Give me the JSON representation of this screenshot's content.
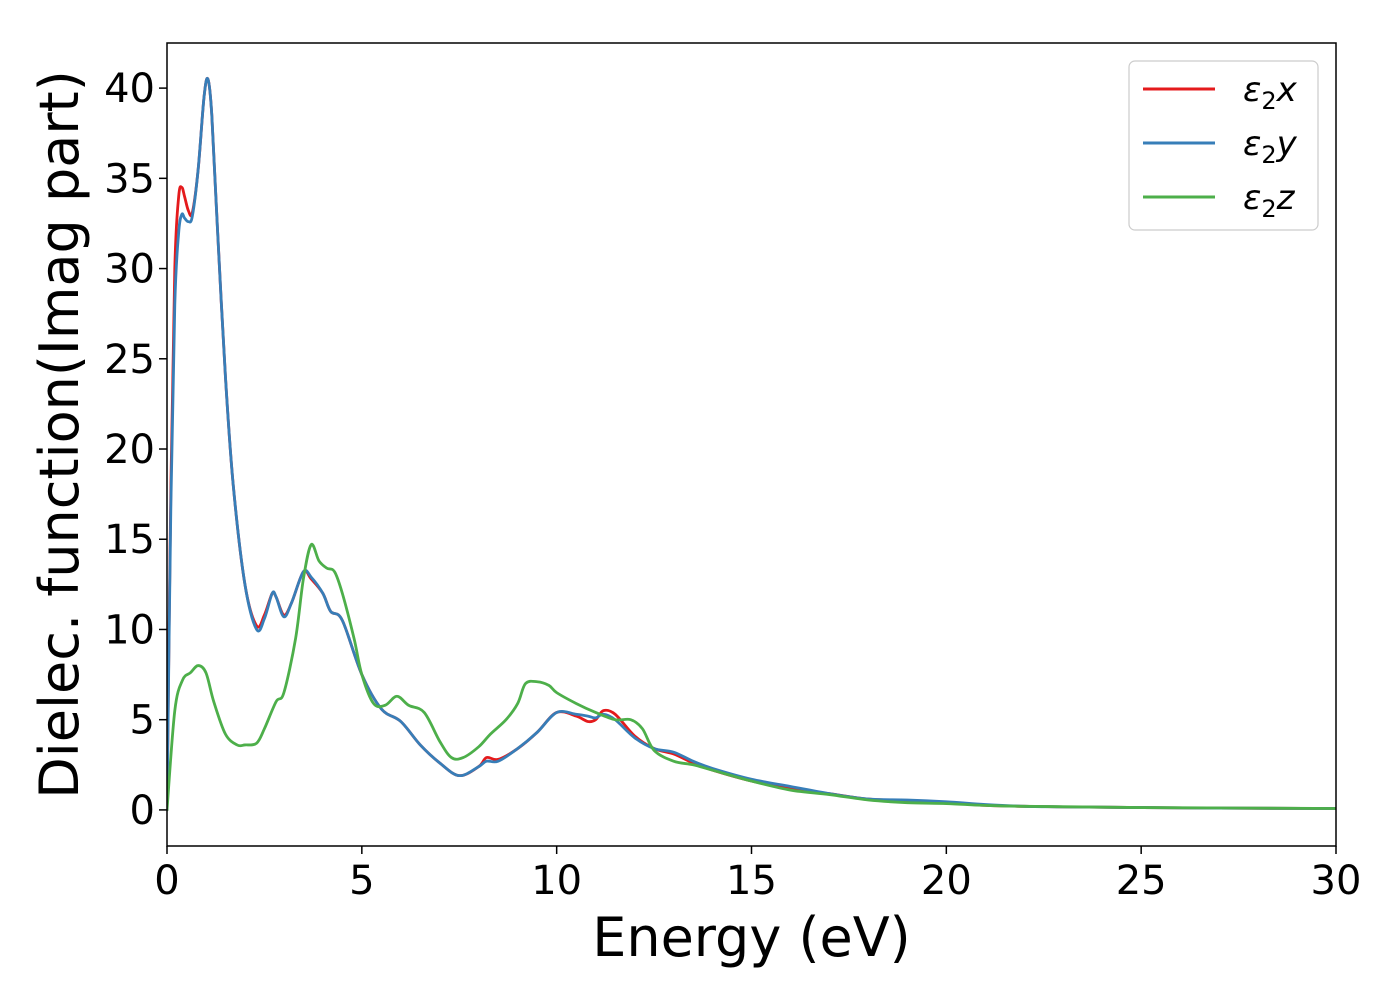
{
  "chart_data": {
    "type": "line",
    "title": "",
    "xlabel": "Energy (eV)",
    "ylabel": "Dielec. function(Imag part)",
    "xlim": [
      0,
      30
    ],
    "ylim": [
      -2,
      42.5
    ],
    "xticks": [
      0,
      5,
      10,
      15,
      20,
      25,
      30
    ],
    "yticks": [
      0,
      5,
      10,
      15,
      20,
      25,
      30,
      35,
      40
    ],
    "grid": false,
    "legend_position": "top-right",
    "series": [
      {
        "name": "ε₂x",
        "legend_main": "ε",
        "legend_sub": "2",
        "legend_suffix": "x",
        "color": "#e41a1c",
        "x": [
          0,
          0.1,
          0.2,
          0.3,
          0.38,
          0.45,
          0.55,
          0.65,
          0.8,
          0.95,
          1.05,
          1.15,
          1.3,
          1.5,
          1.7,
          2.0,
          2.3,
          2.5,
          2.7,
          2.8,
          3.0,
          3.2,
          3.5,
          3.7,
          4.0,
          4.2,
          4.5,
          5.0,
          5.5,
          6.0,
          6.5,
          7.0,
          7.5,
          8.0,
          8.2,
          8.5,
          9.0,
          9.5,
          10.0,
          10.5,
          10.8,
          11.0,
          11.2,
          11.5,
          12.0,
          12.5,
          13.0,
          13.5,
          14.0,
          15.0,
          16.0,
          17.0,
          18.0,
          19.0,
          20.0,
          21.0,
          22.0,
          23.0,
          25.0,
          27.0,
          30.0
        ],
        "y": [
          0,
          18,
          30,
          34,
          34.5,
          34.0,
          33.2,
          33.1,
          35.5,
          39.5,
          40.5,
          38.5,
          32,
          24,
          18,
          12.5,
          10.2,
          10.8,
          12,
          11.8,
          10.8,
          11.5,
          13.2,
          12.8,
          12,
          11,
          10.5,
          7.5,
          5.6,
          4.9,
          3.6,
          2.6,
          1.9,
          2.4,
          2.9,
          2.8,
          3.4,
          4.3,
          5.4,
          5.2,
          4.9,
          5.0,
          5.5,
          5.3,
          4.1,
          3.4,
          3.1,
          2.6,
          2.2,
          1.6,
          1.2,
          0.9,
          0.6,
          0.5,
          0.4,
          0.25,
          0.2,
          0.17,
          0.13,
          0.1,
          0.08
        ]
      },
      {
        "name": "ε₂y",
        "legend_main": "ε",
        "legend_sub": "2",
        "legend_suffix": "y",
        "color": "#377eb8",
        "x": [
          0,
          0.1,
          0.2,
          0.3,
          0.38,
          0.45,
          0.55,
          0.65,
          0.8,
          0.95,
          1.05,
          1.15,
          1.3,
          1.5,
          1.7,
          2.0,
          2.3,
          2.5,
          2.7,
          2.8,
          3.0,
          3.2,
          3.5,
          3.7,
          4.0,
          4.2,
          4.5,
          5.0,
          5.5,
          6.0,
          6.5,
          7.0,
          7.5,
          8.0,
          8.2,
          8.5,
          9.0,
          9.5,
          10.0,
          10.5,
          10.8,
          11.0,
          11.2,
          11.5,
          12.0,
          12.5,
          13.0,
          13.5,
          14.0,
          15.0,
          16.0,
          17.0,
          18.0,
          19.0,
          20.0,
          21.0,
          22.0,
          23.0,
          25.0,
          27.0,
          30.0
        ],
        "y": [
          0,
          17,
          28,
          32,
          33,
          32.8,
          32.6,
          32.9,
          35.5,
          39.5,
          40.5,
          38.5,
          32,
          24,
          18,
          12.5,
          10.0,
          10.6,
          12,
          11.8,
          10.7,
          11.5,
          13.2,
          12.9,
          12,
          11,
          10.5,
          7.5,
          5.6,
          4.9,
          3.6,
          2.6,
          1.9,
          2.4,
          2.7,
          2.7,
          3.4,
          4.3,
          5.4,
          5.3,
          5.2,
          5.1,
          5.3,
          5.0,
          4.0,
          3.4,
          3.2,
          2.7,
          2.3,
          1.7,
          1.3,
          0.9,
          0.6,
          0.55,
          0.45,
          0.3,
          0.2,
          0.17,
          0.13,
          0.1,
          0.08
        ]
      },
      {
        "name": "ε₂z",
        "legend_main": "ε",
        "legend_sub": "2",
        "legend_suffix": "z",
        "color": "#4daf4a",
        "x": [
          0,
          0.2,
          0.4,
          0.6,
          0.8,
          1.0,
          1.2,
          1.5,
          1.8,
          2.0,
          2.3,
          2.5,
          2.8,
          3.0,
          3.3,
          3.5,
          3.7,
          3.9,
          4.1,
          4.3,
          4.5,
          4.8,
          5.0,
          5.3,
          5.6,
          5.9,
          6.2,
          6.6,
          7.0,
          7.3,
          7.6,
          8.0,
          8.3,
          8.7,
          9.0,
          9.2,
          9.5,
          9.8,
          10.0,
          10.5,
          11.0,
          11.5,
          11.9,
          12.2,
          12.5,
          13.0,
          13.5,
          14.0,
          15.0,
          16.0,
          17.0,
          18.0,
          19.0,
          20.0,
          21.0,
          22.0,
          25.0,
          30.0
        ],
        "y": [
          0,
          5.5,
          7.2,
          7.6,
          8.0,
          7.6,
          6.0,
          4.2,
          3.6,
          3.6,
          3.7,
          4.5,
          6.0,
          6.5,
          9.5,
          12.8,
          14.7,
          13.8,
          13.4,
          13.2,
          12.0,
          9.5,
          7.5,
          5.9,
          5.8,
          6.3,
          5.8,
          5.4,
          3.8,
          2.9,
          2.9,
          3.5,
          4.2,
          5.0,
          5.9,
          7.0,
          7.1,
          6.9,
          6.5,
          5.9,
          5.4,
          5.0,
          5.0,
          4.5,
          3.3,
          2.7,
          2.5,
          2.2,
          1.6,
          1.1,
          0.85,
          0.55,
          0.4,
          0.35,
          0.25,
          0.2,
          0.13,
          0.08
        ]
      }
    ]
  }
}
